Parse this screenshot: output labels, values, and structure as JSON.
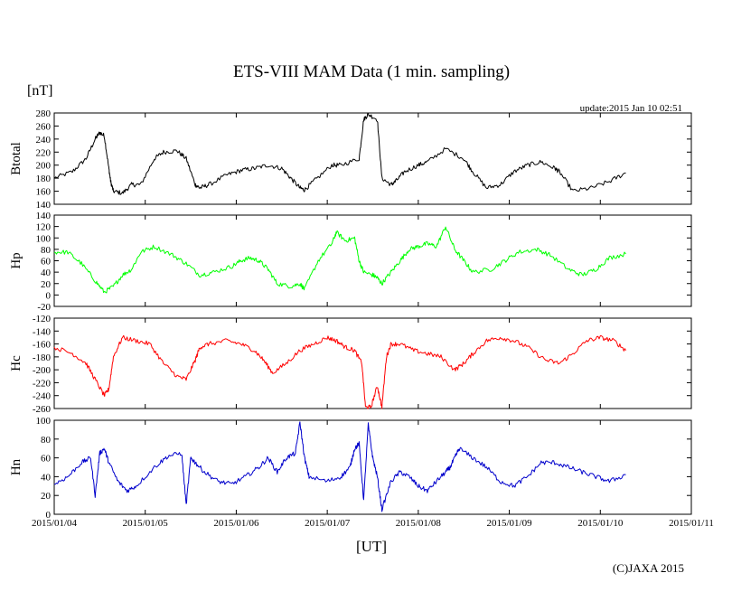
{
  "chart_data": {
    "type": "line",
    "title": "ETS-VIII MAM Data (1 min. sampling)",
    "unit_label": "[nT]",
    "update_label": "update:2015 Jan 10 02:51",
    "xlabel": "[UT]",
    "credit": "(C)JAXA 2015",
    "x_unit": "days since 2015/01/04 00:00 UT",
    "xlim": [
      0,
      7
    ],
    "x_tick_labels": [
      "2015/01/04",
      "2015/01/05",
      "2015/01/06",
      "2015/01/07",
      "2015/01/08",
      "2015/01/09",
      "2015/01/10",
      "2015/01/11"
    ],
    "panels": [
      {
        "name": "Btotal",
        "ylabel": "Btotal",
        "color": "#000000",
        "ylim": [
          140,
          280
        ],
        "yticks": [
          140,
          160,
          180,
          200,
          220,
          240,
          260,
          280
        ],
        "x": [
          0,
          0.2,
          0.35,
          0.45,
          0.5,
          0.55,
          0.6,
          0.62,
          0.65,
          0.75,
          0.85,
          0.95,
          1.1,
          1.2,
          1.35,
          1.45,
          1.55,
          1.6,
          1.7,
          1.9,
          2.05,
          2.2,
          2.35,
          2.5,
          2.6,
          2.7,
          2.75,
          2.85,
          3.05,
          3.15,
          3.35,
          3.4,
          3.45,
          3.55,
          3.6,
          3.7,
          3.75,
          3.85,
          4.0,
          4.1,
          4.3,
          4.5,
          4.6,
          4.75,
          4.9,
          5.05,
          5.2,
          5.35,
          5.5,
          5.55,
          5.7,
          5.9,
          6.1,
          6.28
        ],
        "y": [
          180,
          190,
          210,
          240,
          250,
          245,
          195,
          175,
          160,
          157,
          170,
          170,
          210,
          220,
          222,
          210,
          170,
          165,
          170,
          185,
          192,
          195,
          200,
          195,
          180,
          165,
          162,
          175,
          200,
          200,
          210,
          270,
          278,
          270,
          180,
          170,
          175,
          190,
          200,
          205,
          225,
          210,
          190,
          165,
          170,
          190,
          200,
          205,
          195,
          190,
          160,
          165,
          175,
          188
        ]
      },
      {
        "name": "Hp",
        "ylabel": "Hp",
        "color": "#00ff00",
        "ylim": [
          -20,
          140
        ],
        "yticks": [
          -20,
          0,
          20,
          40,
          60,
          80,
          100,
          120,
          140
        ],
        "x": [
          0,
          0.15,
          0.3,
          0.45,
          0.55,
          0.65,
          0.75,
          0.85,
          0.95,
          1.1,
          1.3,
          1.45,
          1.6,
          1.75,
          1.95,
          2.05,
          2.15,
          2.25,
          2.35,
          2.45,
          2.6,
          2.7,
          2.75,
          2.9,
          3.05,
          3.1,
          3.2,
          3.3,
          3.35,
          3.4,
          3.5,
          3.55,
          3.6,
          3.7,
          3.8,
          3.9,
          4.0,
          4.1,
          4.2,
          4.3,
          4.4,
          4.5,
          4.6,
          4.8,
          4.95,
          5.1,
          5.3,
          5.45,
          5.65,
          5.8,
          5.95,
          6.1,
          6.28
        ],
        "y": [
          75,
          75,
          55,
          25,
          5,
          15,
          35,
          45,
          75,
          85,
          70,
          55,
          35,
          40,
          50,
          60,
          65,
          60,
          45,
          20,
          15,
          20,
          10,
          60,
          90,
          110,
          95,
          100,
          60,
          40,
          35,
          30,
          20,
          40,
          60,
          80,
          85,
          90,
          85,
          120,
          80,
          60,
          40,
          45,
          60,
          75,
          80,
          70,
          45,
          35,
          45,
          65,
          72
        ]
      },
      {
        "name": "Hc",
        "ylabel": "Hc",
        "color": "#ff0000",
        "ylim": [
          -260,
          -120
        ],
        "yticks": [
          -260,
          -240,
          -220,
          -200,
          -180,
          -160,
          -140,
          -120
        ],
        "x": [
          0,
          0.2,
          0.35,
          0.45,
          0.55,
          0.6,
          0.65,
          0.75,
          0.9,
          1.05,
          1.2,
          1.35,
          1.45,
          1.55,
          1.6,
          1.7,
          1.9,
          2.05,
          2.2,
          2.3,
          2.4,
          2.55,
          2.7,
          2.85,
          3.0,
          3.1,
          3.2,
          3.3,
          3.38,
          3.42,
          3.48,
          3.55,
          3.6,
          3.65,
          3.7,
          3.8,
          3.95,
          4.1,
          4.25,
          4.4,
          4.5,
          4.6,
          4.75,
          4.9,
          5.05,
          5.2,
          5.4,
          5.55,
          5.7,
          5.85,
          6.0,
          6.15,
          6.28
        ],
        "y": [
          -165,
          -175,
          -190,
          -215,
          -240,
          -230,
          -180,
          -150,
          -155,
          -160,
          -190,
          -210,
          -215,
          -185,
          -165,
          -160,
          -155,
          -160,
          -170,
          -185,
          -205,
          -190,
          -170,
          -160,
          -150,
          -155,
          -165,
          -170,
          -190,
          -258,
          -258,
          -225,
          -258,
          -180,
          -160,
          -160,
          -170,
          -175,
          -180,
          -200,
          -190,
          -175,
          -155,
          -150,
          -155,
          -165,
          -185,
          -190,
          -175,
          -155,
          -150,
          -155,
          -170
        ]
      },
      {
        "name": "Hn",
        "ylabel": "Hn",
        "color": "#0000cc",
        "ylim": [
          0,
          100
        ],
        "yticks": [
          0,
          20,
          40,
          60,
          80,
          100
        ],
        "x": [
          0,
          0.15,
          0.3,
          0.4,
          0.45,
          0.5,
          0.55,
          0.6,
          0.7,
          0.8,
          0.9,
          1.1,
          1.25,
          1.4,
          1.45,
          1.5,
          1.55,
          1.65,
          1.8,
          1.95,
          2.1,
          2.25,
          2.35,
          2.45,
          2.55,
          2.65,
          2.7,
          2.75,
          2.8,
          3.0,
          3.15,
          3.25,
          3.3,
          3.35,
          3.4,
          3.45,
          3.5,
          3.55,
          3.6,
          3.7,
          3.8,
          3.9,
          4.0,
          4.1,
          4.2,
          4.3,
          4.35,
          4.4,
          4.45,
          4.6,
          4.75,
          4.9,
          5.05,
          5.2,
          5.35,
          5.5,
          5.65,
          5.8,
          5.95,
          6.1,
          6.28
        ],
        "y": [
          32,
          40,
          55,
          60,
          20,
          65,
          70,
          55,
          35,
          25,
          30,
          50,
          62,
          65,
          10,
          60,
          55,
          45,
          35,
          32,
          40,
          50,
          60,
          45,
          60,
          65,
          98,
          60,
          40,
          35,
          40,
          50,
          70,
          75,
          15,
          95,
          60,
          40,
          5,
          35,
          45,
          40,
          30,
          25,
          35,
          45,
          50,
          60,
          70,
          60,
          50,
          35,
          30,
          40,
          55,
          55,
          50,
          45,
          40,
          35,
          42
        ]
      }
    ]
  }
}
